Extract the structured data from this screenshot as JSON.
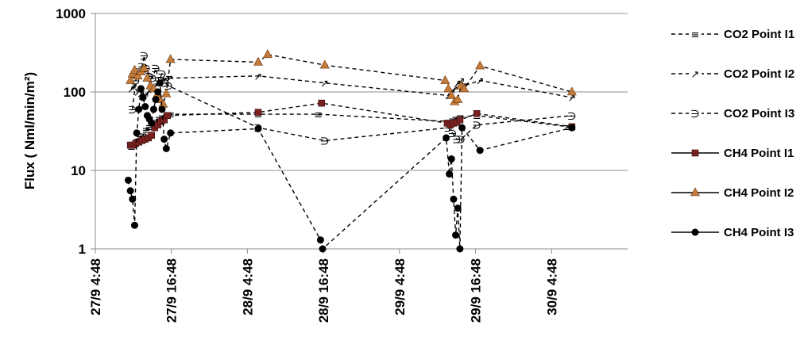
{
  "chart_data": {
    "type": "line",
    "title": "",
    "xlabel": "",
    "ylabel": "Flux ( Nml/min/m²)",
    "yscale": "log",
    "ylim": [
      1,
      1000
    ],
    "y_ticks": [
      1,
      10,
      100,
      1000
    ],
    "y_tick_labels": [
      "1",
      "10",
      "100",
      "1000"
    ],
    "xlim": [
      "2019-09-27T04:48",
      "2019-09-30T16:48"
    ],
    "x_ticks": [
      "2019-09-27T04:48",
      "2019-09-27T16:48",
      "2019-09-28T04:48",
      "2019-09-28T16:48",
      "2019-09-29T04:48",
      "2019-09-29T16:48",
      "2019-09-30T04:48"
    ],
    "x_tick_labels": [
      "27/9 4:48",
      "27/9 16:48",
      "28/9 4:48",
      "28/9 16:48",
      "29/9 4:48",
      "29/9 16:48",
      "30/9 4:48"
    ],
    "grid": "horizontal",
    "legend_position": "right",
    "series": [
      {
        "name": "CO2 Point I1",
        "line": "dashed",
        "marker": "≡",
        "color": "#000000",
        "x": [
          "2019-09-27T10:30",
          "2019-09-27T10:50",
          "2019-09-27T11:20",
          "2019-09-27T11:50",
          "2019-09-27T12:20",
          "2019-09-27T12:50",
          "2019-09-27T13:20",
          "2019-09-27T13:50",
          "2019-09-27T14:20",
          "2019-09-27T14:50",
          "2019-09-27T15:20",
          "2019-09-27T16:00",
          "2019-09-27T16:40",
          "2019-09-28T06:30",
          "2019-09-28T16:00",
          "2019-09-29T12:30",
          "2019-09-29T13:10",
          "2019-09-29T13:40",
          "2019-09-29T14:20",
          "2019-09-29T17:00",
          "2019-09-30T07:30"
        ],
        "y": [
          20,
          22,
          24,
          26,
          28,
          33,
          36,
          38,
          42,
          46,
          48,
          50,
          52,
          52,
          52,
          42,
          44,
          46,
          48,
          50,
          36
        ]
      },
      {
        "name": "CO2 Point I2",
        "line": "dashed",
        "marker": "↗",
        "color": "#000000",
        "x": [
          "2019-09-27T10:30",
          "2019-09-27T10:50",
          "2019-09-27T11:30",
          "2019-09-27T12:00",
          "2019-09-27T12:40",
          "2019-09-27T13:10",
          "2019-09-27T13:40",
          "2019-09-27T14:10",
          "2019-09-27T14:40",
          "2019-09-27T15:20",
          "2019-09-27T16:00",
          "2019-09-27T16:30",
          "2019-09-28T06:30",
          "2019-09-28T17:00",
          "2019-09-29T12:30",
          "2019-09-29T13:00",
          "2019-09-29T13:30",
          "2019-09-29T14:00",
          "2019-09-29T14:30",
          "2019-09-29T15:00",
          "2019-09-29T17:30",
          "2019-09-30T08:00"
        ],
        "y": [
          110,
          120,
          100,
          95,
          90,
          100,
          110,
          120,
          130,
          140,
          150,
          150,
          160,
          130,
          90,
          100,
          110,
          130,
          140,
          120,
          140,
          85
        ]
      },
      {
        "name": "CO2 Point I3",
        "line": "dashed",
        "marker": "∋",
        "color": "#000000",
        "x": [
          "2019-09-27T10:40",
          "2019-09-27T11:10",
          "2019-09-27T11:40",
          "2019-09-27T12:10",
          "2019-09-27T12:30",
          "2019-09-27T12:50",
          "2019-09-27T13:20",
          "2019-09-27T13:50",
          "2019-09-27T14:20",
          "2019-09-27T14:50",
          "2019-09-27T15:20",
          "2019-09-27T15:50",
          "2019-09-27T16:20",
          "2019-09-28T06:30",
          "2019-09-28T17:00",
          "2019-09-29T12:30",
          "2019-09-29T13:10",
          "2019-09-29T13:50",
          "2019-09-29T14:30",
          "2019-09-29T17:00",
          "2019-09-30T08:00"
        ],
        "y": [
          60,
          140,
          180,
          210,
          290,
          200,
          160,
          150,
          200,
          140,
          170,
          130,
          120,
          35,
          24,
          35,
          30,
          25,
          25,
          38,
          50
        ]
      },
      {
        "name": "CH4 Point I1",
        "line": "solid",
        "marker": "square",
        "color": "#7a2020",
        "x": [
          "2019-09-27T10:20",
          "2019-09-27T10:40",
          "2019-09-27T11:10",
          "2019-09-27T11:40",
          "2019-09-27T12:10",
          "2019-09-27T12:40",
          "2019-09-27T13:10",
          "2019-09-27T13:40",
          "2019-09-27T14:10",
          "2019-09-27T14:40",
          "2019-09-27T15:10",
          "2019-09-27T15:40",
          "2019-09-27T16:10",
          "2019-09-28T06:30",
          "2019-09-28T16:30",
          "2019-09-29T12:20",
          "2019-09-29T12:50",
          "2019-09-29T13:20",
          "2019-09-29T13:50",
          "2019-09-29T14:20",
          "2019-09-29T17:00",
          "2019-09-30T08:00"
        ],
        "y": [
          21,
          21,
          22,
          23,
          24,
          25,
          26,
          28,
          35,
          38,
          42,
          44,
          50,
          55,
          72,
          40,
          38,
          40,
          41,
          44,
          53,
          36
        ]
      },
      {
        "name": "CH4 Point I2",
        "line": "solid",
        "marker": "triangle",
        "color": "#c47a3a",
        "x": [
          "2019-09-27T10:20",
          "2019-09-27T10:40",
          "2019-09-27T11:00",
          "2019-09-27T11:30",
          "2019-09-27T12:00",
          "2019-09-27T12:30",
          "2019-09-27T13:00",
          "2019-09-27T13:30",
          "2019-09-27T14:00",
          "2019-09-27T14:30",
          "2019-09-27T15:00",
          "2019-09-27T15:30",
          "2019-09-27T16:00",
          "2019-09-27T16:40",
          "2019-09-28T06:30",
          "2019-09-28T08:00",
          "2019-09-28T17:00",
          "2019-09-29T12:00",
          "2019-09-29T12:30",
          "2019-09-29T13:00",
          "2019-09-29T13:30",
          "2019-09-29T14:00",
          "2019-09-29T14:30",
          "2019-09-29T15:00",
          "2019-09-29T17:30",
          "2019-09-30T08:00"
        ],
        "y": [
          140,
          170,
          190,
          160,
          180,
          200,
          150,
          120,
          110,
          90,
          80,
          70,
          95,
          260,
          240,
          300,
          220,
          140,
          110,
          90,
          75,
          80,
          120,
          110,
          215,
          100
        ]
      },
      {
        "name": "CH4 Point I3",
        "line": "solid",
        "marker": "circle",
        "color": "#000000",
        "x": [
          "2019-09-27T10:00",
          "2019-09-27T10:20",
          "2019-09-27T10:40",
          "2019-09-27T11:00",
          "2019-09-27T11:20",
          "2019-09-27T11:40",
          "2019-09-27T12:00",
          "2019-09-27T12:20",
          "2019-09-27T12:40",
          "2019-09-27T13:00",
          "2019-09-27T13:20",
          "2019-09-27T13:40",
          "2019-09-27T14:00",
          "2019-09-27T14:20",
          "2019-09-27T14:40",
          "2019-09-27T15:00",
          "2019-09-27T15:20",
          "2019-09-27T15:40",
          "2019-09-27T16:00",
          "2019-09-27T16:40",
          "2019-09-28T06:30",
          "2019-09-28T16:20",
          "2019-09-28T16:40",
          "2019-09-29T12:10",
          "2019-09-29T12:40",
          "2019-09-29T13:00",
          "2019-09-29T13:20",
          "2019-09-29T13:40",
          "2019-09-29T14:00",
          "2019-09-29T14:20",
          "2019-09-29T14:40",
          "2019-09-29T17:30",
          "2019-09-30T08:00"
        ],
        "y": [
          7.5,
          5.5,
          4.3,
          2,
          30,
          60,
          110,
          85,
          65,
          50,
          45,
          40,
          60,
          80,
          100,
          130,
          60,
          25,
          19,
          30,
          34,
          1.3,
          1,
          26,
          9,
          14,
          4.3,
          1.5,
          3.3,
          1,
          35,
          18,
          35
        ]
      }
    ]
  }
}
